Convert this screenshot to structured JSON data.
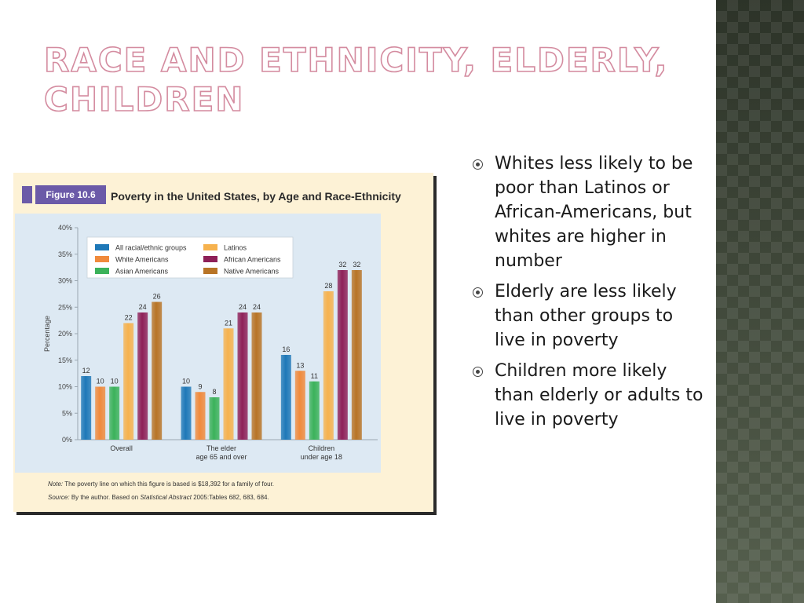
{
  "slide": {
    "title": "Race and Ethnicity, Elderly, Children"
  },
  "figure": {
    "label": "Figure 10.6",
    "title": "Poverty in the United States, by Age and Race-Ethnicity",
    "note_label": "Note:",
    "note": "The poverty line on which this figure is based is $18,392 for a family of four.",
    "source_label": "Source:",
    "source_pre": "By the author. Based on",
    "source_italic": "Statistical Abstract",
    "source_post": "2005:Tables 682, 683, 684."
  },
  "bullets": [
    "Whites less likely to be poor than Latinos or African-Americans, but whites are higher in number",
    "Elderly are less likely than other groups to live in poverty",
    "Children more likely than elderly or adults to live in poverty"
  ],
  "chart_data": {
    "type": "bar",
    "ylabel": "Percentage",
    "ylim": [
      0,
      40
    ],
    "yticks": [
      "0%",
      "5%",
      "10%",
      "15%",
      "20%",
      "25%",
      "30%",
      "35%",
      "40%"
    ],
    "categories": [
      [
        "Overall"
      ],
      [
        "The elder",
        "age 65 and over"
      ],
      [
        "Children",
        "under age 18"
      ]
    ],
    "legend_position": "top-left",
    "series": [
      {
        "name": "All racial/ethnic groups",
        "color": "#1e78b8",
        "values": [
          12,
          10,
          16
        ]
      },
      {
        "name": "White Americans",
        "color": "#f08a3c",
        "values": [
          10,
          9,
          13
        ]
      },
      {
        "name": "Asian Americans",
        "color": "#3bb25a",
        "values": [
          10,
          8,
          11
        ]
      },
      {
        "name": "Latinos",
        "color": "#f6b24e",
        "values": [
          22,
          21,
          28
        ]
      },
      {
        "name": "African Americans",
        "color": "#8e2058",
        "values": [
          24,
          24,
          32
        ]
      },
      {
        "name": "Native Americans",
        "color": "#b87426",
        "values": [
          26,
          24,
          32
        ]
      }
    ]
  }
}
